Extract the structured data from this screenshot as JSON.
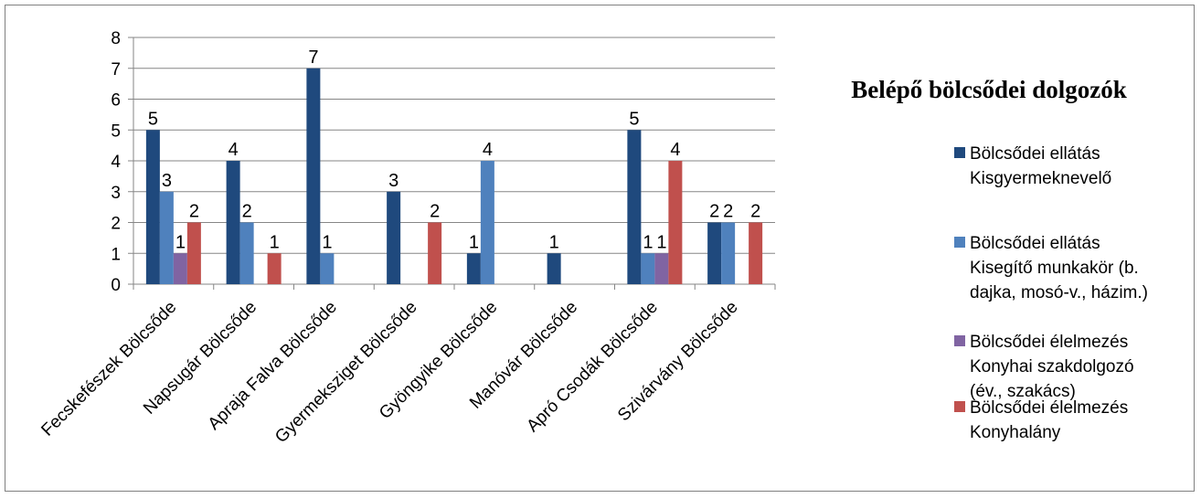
{
  "chart_data": {
    "type": "bar",
    "title": "Belépő bölcsődei dolgozók",
    "categories": [
      "Fecskefészek Bölcsőde",
      "Napsugár Bölcsőde",
      "Apraja Falva Bölcsőde",
      "Gyermeksziget Bölcsőde",
      "Gyöngyike Bölcsőde",
      "Manóvár Bölcsőde",
      "Apró Csodák Bölcsőde",
      "Szivárvány Bölcsőde"
    ],
    "series": [
      {
        "name": [
          "Bölcsődei ellátás",
          "Kisgyermeknevelő"
        ],
        "color": "#1F497D",
        "values": [
          5,
          4,
          7,
          3,
          1,
          1,
          5,
          2
        ]
      },
      {
        "name": [
          "Bölcsődei ellátás",
          "Kisegítő munkakör (b.",
          "dajka, mosó-v., házim.)"
        ],
        "color": "#4F81BD",
        "values": [
          3,
          2,
          1,
          0,
          4,
          0,
          1,
          2
        ]
      },
      {
        "name": [
          "Bölcsődei élelmezés",
          "Konyhai szakdolgozó",
          "(év., szakács)"
        ],
        "color": "#8064A2",
        "values": [
          1,
          0,
          0,
          0,
          0,
          0,
          1,
          0
        ]
      },
      {
        "name": [
          "Bölcsődei élelmezés",
          "Konyhalány"
        ],
        "color": "#C0504D",
        "values": [
          2,
          1,
          0,
          2,
          0,
          0,
          4,
          2
        ]
      }
    ],
    "ylim": [
      0,
      8
    ],
    "yticks": [
      0,
      1,
      2,
      3,
      4,
      5,
      6,
      7,
      8
    ],
    "grid": true,
    "legend_position": "right"
  }
}
